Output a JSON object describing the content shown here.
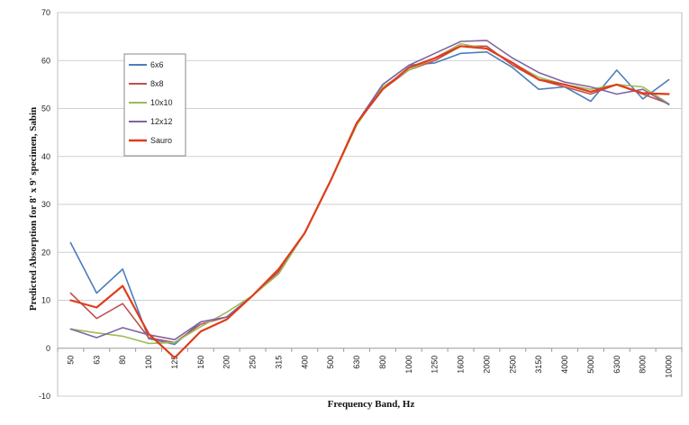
{
  "chart_data": {
    "type": "line",
    "xlabel": "Frequency Band, Hz",
    "ylabel": "Predicted Absorption for 8' x 9' specimen, Sabin",
    "ylim": [
      -10,
      70
    ],
    "yticks": [
      "-10",
      "0",
      "10",
      "20",
      "30",
      "40",
      "50",
      "60",
      "70"
    ],
    "grid": true,
    "legend_position": "top-left",
    "categories": [
      "50",
      "63",
      "80",
      "100",
      "125",
      "160",
      "200",
      "250",
      "315",
      "400",
      "500",
      "630",
      "800",
      "1000",
      "1250",
      "1600",
      "2000",
      "2500",
      "3150",
      "4000",
      "5000",
      "6300",
      "8000",
      "10000"
    ],
    "series": [
      {
        "name": "6x6",
        "color": "#4A7EBB",
        "values": [
          22,
          11.5,
          16.5,
          2,
          0.8,
          5.5,
          6.5,
          11,
          16,
          24,
          35,
          47,
          55,
          59,
          59.5,
          61.5,
          61.8,
          58.5,
          54,
          54.5,
          51.5,
          58,
          52,
          56
        ]
      },
      {
        "name": "8x8",
        "color": "#C0504D",
        "values": [
          11.5,
          6.2,
          9.3,
          2.2,
          1.2,
          5,
          6.5,
          11,
          16,
          24,
          35,
          47,
          54,
          58,
          60,
          63,
          63,
          59,
          56,
          54.5,
          53,
          55,
          53,
          51
        ]
      },
      {
        "name": "10x10",
        "color": "#9BBB59",
        "values": [
          4,
          3.2,
          2.5,
          1,
          1.2,
          4.5,
          7.5,
          11,
          15.5,
          24,
          35,
          46.5,
          54.5,
          58,
          60.5,
          63.5,
          62.5,
          59.5,
          56.5,
          55,
          54,
          55,
          54.5,
          51
        ]
      },
      {
        "name": "12x12",
        "color": "#8064A2",
        "values": [
          4,
          2.2,
          4.3,
          2.8,
          1.8,
          5.5,
          6.5,
          11,
          16.5,
          24,
          35,
          47,
          55,
          59,
          61.5,
          64,
          64.2,
          60.5,
          57.5,
          55.5,
          54.5,
          53,
          54,
          50.8
        ]
      },
      {
        "name": "Sauro",
        "color": "#E03C1A",
        "values": [
          10,
          8.5,
          13,
          3,
          -2,
          3.5,
          6,
          11,
          16.5,
          24,
          35,
          47,
          54,
          58.5,
          60.5,
          63,
          62.5,
          59.5,
          56,
          55,
          53.5,
          55,
          53.2,
          53
        ]
      }
    ]
  }
}
